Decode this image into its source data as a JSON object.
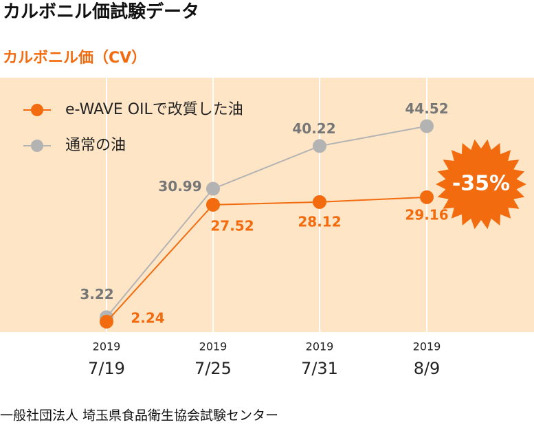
{
  "chart_data": {
    "type": "line",
    "title": "カルボニル価試験データ",
    "subtitle": "カルボニル価（CV）",
    "categories": [
      [
        "2019",
        "7/19"
      ],
      [
        "2019",
        "7/25"
      ],
      [
        "2019",
        "7/31"
      ],
      [
        "2019",
        "8/9"
      ]
    ],
    "series": [
      {
        "name": "e-WAVE OILで改質した油",
        "color": "#f26b0f",
        "values": [
          2.24,
          27.52,
          28.12,
          29.16
        ]
      },
      {
        "name": "通常の油",
        "color": "#b3b3b3",
        "values": [
          3.22,
          30.99,
          40.22,
          44.52
        ]
      }
    ],
    "ylim": [
      0,
      55
    ],
    "grid": true,
    "annotation": "-35%",
    "source": "一般社団法人 埼玉県食品衛生協会試験センター"
  }
}
